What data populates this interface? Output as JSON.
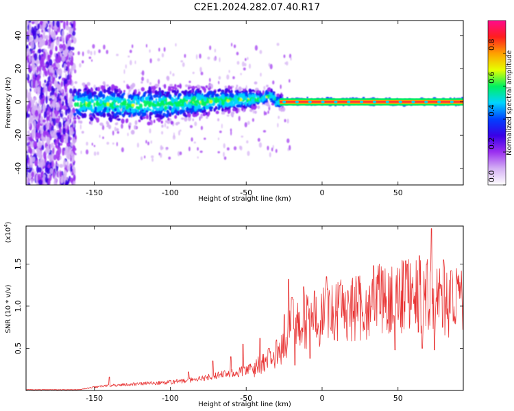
{
  "title": "C2E1.2024.282.07.40.R17",
  "colors": {
    "snr_line": "#e83232",
    "colormap": [
      "#ffffff",
      "#d4b0f4",
      "#9b30f0",
      "#3a00e6",
      "#0040ff",
      "#00d4ff",
      "#00f060",
      "#e6ff00",
      "#ffa000",
      "#ff1e1e",
      "#ff0a8c"
    ],
    "ridge_core": "#ff2244"
  },
  "chart_data": [
    {
      "id": "spectrogram",
      "type": "heatmap",
      "xlabel": "Height of straight line (km)",
      "ylabel": "Frequency (Hz)",
      "xlim": [
        -195,
        93
      ],
      "ylim": [
        -50,
        49
      ],
      "xticks": [
        -150,
        -100,
        -50,
        0,
        50
      ],
      "xtick_labels": [
        "-150",
        "-100",
        "-50",
        "0",
        "50"
      ],
      "yticks": [
        -40,
        -20,
        0,
        20,
        40
      ],
      "ytick_labels": [
        "-40",
        "-20",
        "0",
        "20",
        "40"
      ],
      "colorbar": {
        "label": "Normalized spectral amplitude",
        "range": [
          0.0,
          1.0
        ],
        "ticks": [
          0.0,
          0.2,
          0.4,
          0.6,
          0.8
        ],
        "tick_labels": [
          "0.0",
          "0.2",
          "0.4",
          "0.6",
          "0.8"
        ]
      },
      "ridge": {
        "x": [
          -163,
          -150,
          -120,
          -100,
          -80,
          -60,
          -40,
          -33,
          -30,
          -20,
          0,
          93
        ],
        "frequency": [
          -1,
          -1,
          -2,
          -1,
          0,
          1,
          2,
          4,
          0,
          0,
          0,
          0
        ]
      },
      "noise_region": [
        -195,
        -163
      ]
    },
    {
      "id": "snr",
      "type": "line",
      "xlabel": "Height of straight line (km)",
      "ylabel": "SNR (10 * v/v)",
      "multiplier": "(x10",
      "multiplier_exp": "4",
      "multiplier_close": ")",
      "xlim": [
        -195,
        93
      ],
      "ylim": [
        0,
        1.95
      ],
      "xticks": [
        -150,
        -100,
        -50,
        0,
        50
      ],
      "xtick_labels": [
        "-150",
        "-100",
        "-50",
        "0",
        "50"
      ],
      "yticks": [
        0.5,
        1.0,
        1.5
      ],
      "ytick_labels": [
        "0.5",
        "1.0",
        "1.5"
      ],
      "envelope": {
        "x": [
          -195,
          -160,
          -150,
          -140,
          -120,
          -100,
          -80,
          -70,
          -55,
          -45,
          -35,
          -25,
          -22,
          -20,
          -15,
          -10,
          -5,
          0,
          10,
          20,
          30,
          40,
          50,
          60,
          70,
          75,
          80,
          93
        ],
        "y": [
          0.01,
          0.01,
          0.04,
          0.06,
          0.08,
          0.1,
          0.14,
          0.18,
          0.22,
          0.28,
          0.38,
          0.55,
          0.7,
          0.85,
          0.92,
          0.88,
          0.9,
          0.95,
          1.0,
          1.05,
          1.1,
          1.18,
          1.2,
          1.22,
          1.2,
          1.22,
          1.15,
          1.12
        ]
      },
      "spikes": {
        "x": [
          -140,
          -88,
          -72,
          -60,
          -52,
          -41,
          -35,
          -30,
          -25,
          -22,
          -20,
          -18,
          -12,
          -5,
          3,
          12,
          24,
          34,
          40,
          48,
          56,
          64,
          66,
          72,
          74,
          80,
          85
        ],
        "y": [
          0.16,
          0.22,
          0.35,
          0.4,
          0.55,
          0.62,
          0.5,
          0.6,
          0.9,
          1.32,
          1.1,
          1.28,
          1.23,
          1.18,
          1.35,
          1.25,
          1.35,
          1.48,
          1.42,
          1.38,
          1.5,
          1.6,
          1.72,
          1.92,
          1.78,
          1.55,
          1.42
        ]
      },
      "dips": {
        "x": [
          -18,
          -8,
          8,
          28,
          48,
          66,
          74
        ],
        "y": [
          0.3,
          0.38,
          0.6,
          0.72,
          0.48,
          0.5,
          0.48
        ]
      }
    }
  ]
}
